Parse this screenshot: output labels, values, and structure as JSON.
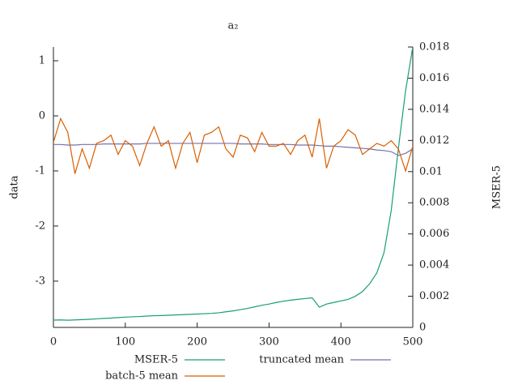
{
  "chart_data": {
    "type": "line",
    "title": "a₂",
    "y_label": "data",
    "y2_label": "MSER-5",
    "x": [
      0,
      10,
      20,
      30,
      40,
      50,
      60,
      70,
      80,
      90,
      100,
      110,
      120,
      130,
      140,
      150,
      160,
      170,
      180,
      190,
      200,
      210,
      220,
      230,
      240,
      250,
      260,
      270,
      280,
      290,
      300,
      310,
      320,
      330,
      340,
      350,
      360,
      370,
      380,
      390,
      400,
      410,
      420,
      430,
      440,
      450,
      460,
      470,
      480,
      490,
      500
    ],
    "xlim": [
      0,
      500
    ],
    "xticks": [
      0,
      100,
      200,
      300,
      400,
      500
    ],
    "ylim": [
      -3.84,
      1.25
    ],
    "yticks": [
      -3,
      -2,
      -1,
      0,
      1
    ],
    "y2lim": [
      0,
      0.018
    ],
    "y2ticks": [
      0,
      0.002,
      0.004,
      0.006,
      0.008,
      0.01,
      0.012,
      0.014,
      0.016,
      0.018
    ],
    "series": [
      {
        "name": "MSER-5",
        "color": "#1b9e77",
        "axis": "y2",
        "values": [
          0.00047,
          0.00048,
          0.00046,
          0.00048,
          0.0005,
          0.00052,
          0.00055,
          0.00058,
          0.0006,
          0.00063,
          0.00066,
          0.00068,
          0.0007,
          0.00073,
          0.00075,
          0.00076,
          0.00078,
          0.0008,
          0.00082,
          0.00084,
          0.00086,
          0.00088,
          0.0009,
          0.00094,
          0.001,
          0.00106,
          0.00114,
          0.00122,
          0.00132,
          0.00142,
          0.0015,
          0.0016,
          0.00168,
          0.00175,
          0.0018,
          0.00185,
          0.0019,
          0.0013,
          0.0015,
          0.0016,
          0.0017,
          0.0018,
          0.002,
          0.0023,
          0.0028,
          0.0035,
          0.0048,
          0.0075,
          0.0115,
          0.0152,
          0.018
        ]
      },
      {
        "name": "truncated mean",
        "color": "#7570b3",
        "axis": "y",
        "values": [
          -0.52,
          -0.52,
          -0.53,
          -0.53,
          -0.52,
          -0.52,
          -0.52,
          -0.51,
          -0.51,
          -0.51,
          -0.51,
          -0.51,
          -0.51,
          -0.5,
          -0.5,
          -0.5,
          -0.5,
          -0.5,
          -0.5,
          -0.5,
          -0.5,
          -0.5,
          -0.5,
          -0.5,
          -0.5,
          -0.5,
          -0.51,
          -0.51,
          -0.51,
          -0.51,
          -0.52,
          -0.52,
          -0.52,
          -0.52,
          -0.53,
          -0.53,
          -0.53,
          -0.54,
          -0.55,
          -0.55,
          -0.56,
          -0.57,
          -0.58,
          -0.59,
          -0.6,
          -0.62,
          -0.63,
          -0.65,
          -0.72,
          -0.68,
          -0.6
        ]
      },
      {
        "name": "batch-5 mean",
        "color": "#d95f02",
        "axis": "y",
        "values": [
          -0.48,
          -0.05,
          -0.3,
          -1.05,
          -0.6,
          -0.95,
          -0.5,
          -0.45,
          -0.35,
          -0.7,
          -0.45,
          -0.55,
          -0.9,
          -0.5,
          -0.2,
          -0.55,
          -0.45,
          -0.95,
          -0.5,
          -0.3,
          -0.85,
          -0.35,
          -0.3,
          -0.2,
          -0.6,
          -0.75,
          -0.35,
          -0.4,
          -0.65,
          -0.3,
          -0.55,
          -0.55,
          -0.5,
          -0.7,
          -0.45,
          -0.35,
          -0.75,
          -0.05,
          -0.95,
          -0.55,
          -0.45,
          -0.25,
          -0.35,
          -0.7,
          -0.6,
          -0.5,
          -0.55,
          -0.45,
          -0.6,
          -1.0,
          -0.55
        ]
      }
    ]
  }
}
